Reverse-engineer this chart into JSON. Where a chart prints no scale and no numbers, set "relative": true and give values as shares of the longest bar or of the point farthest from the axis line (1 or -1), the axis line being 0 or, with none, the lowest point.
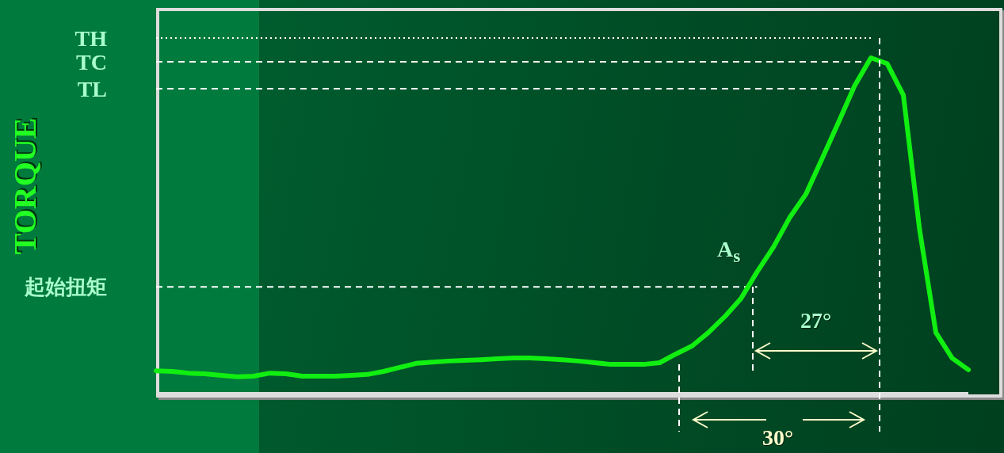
{
  "chart_data": {
    "type": "line",
    "relative": true,
    "ylabel": "TORQUE",
    "categories": [
      null,
      null,
      null,
      null,
      null,
      null,
      null,
      null,
      null,
      null,
      null,
      null,
      null,
      null,
      null,
      null,
      null,
      null,
      null,
      null,
      null,
      null,
      null,
      null,
      null,
      null,
      null,
      null,
      null,
      null,
      null,
      null,
      null,
      null,
      null,
      null,
      null,
      null,
      null,
      null,
      null,
      null,
      null,
      null,
      null,
      null,
      null,
      null,
      null,
      null,
      null
    ],
    "series": [
      {
        "color": "#11ee11",
        "values": [
          0.068,
          0.066,
          0.061,
          0.059,
          0.054,
          0.05,
          0.052,
          0.061,
          0.059,
          0.052,
          0.052,
          0.052,
          0.054,
          0.057,
          0.066,
          0.078,
          0.09,
          0.094,
          0.097,
          0.099,
          0.101,
          0.104,
          0.106,
          0.106,
          0.104,
          0.101,
          0.097,
          0.092,
          0.087,
          0.087,
          0.087,
          0.092,
          0.118,
          0.142,
          0.182,
          0.229,
          0.283,
          0.363,
          0.436,
          0.524,
          0.594,
          0.7,
          0.807,
          0.917,
          1,
          0.983,
          0.889,
          0.488,
          0.182,
          0.106,
          0.071
        ]
      }
    ],
    "ref_lines": [
      {
        "axis": "y",
        "value": 1.059,
        "label": "TH",
        "color": "#ffffff",
        "line_style": "dotted"
      },
      {
        "axis": "y",
        "value": 0.988,
        "label": "TC",
        "color": "#ffffff",
        "line_style": "dashed"
      },
      {
        "axis": "y",
        "value": 0.908,
        "label": "TL",
        "color": "#ffffff",
        "line_style": "dashed"
      },
      {
        "axis": "y",
        "value": 0.318,
        "label": "起始扭矩",
        "color": "#ffffff",
        "line_style": "dashed"
      }
    ],
    "annotations": [
      "A$_{s}$",
      "27°",
      "30°"
    ],
    "marker": "none",
    "line_style": "solid",
    "grid": false,
    "legend": false
  }
}
